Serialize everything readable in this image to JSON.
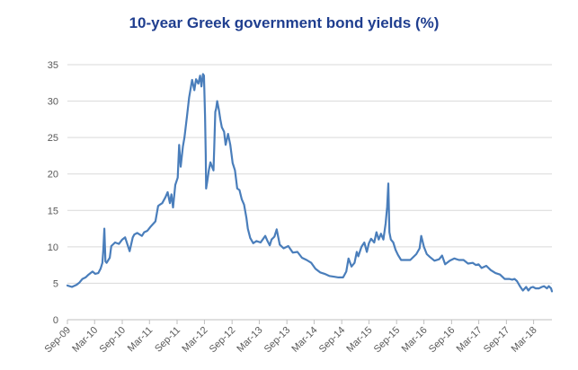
{
  "chart_data": {
    "type": "line",
    "title": "10-year Greek government bond yields (%)",
    "xlabel": "",
    "ylabel": "",
    "ylim": [
      0,
      35
    ],
    "yticks": [
      "0",
      "5",
      "10",
      "15",
      "20",
      "25",
      "30",
      "35"
    ],
    "xticks": [
      "Sep-09",
      "Mar-10",
      "Sep-10",
      "Mar-11",
      "Sep-11",
      "Mar-12",
      "Sep-12",
      "Mar-13",
      "Sep-13",
      "Mar-14",
      "Sep-14",
      "Mar-15",
      "Sep-15",
      "Mar-16",
      "Sep-16",
      "Mar-17",
      "Sep-17",
      "Mar-18"
    ],
    "xlim": [
      "2009-09-01",
      "2018-07-01"
    ],
    "grid": "horizontal",
    "legend": "none",
    "colors": {
      "title": "#1F3E8F",
      "line": "#4A7EBB",
      "grid": "#D9D9D9",
      "axis": "#BFBFBF",
      "tick_text": "#595959"
    },
    "series": [
      {
        "x": [
          "2009-09-01",
          "2009-10-01",
          "2009-11-01",
          "2009-11-20",
          "2009-12-10",
          "2009-12-31",
          "2010-01-20",
          "2010-02-15",
          "2010-03-05",
          "2010-03-25",
          "2010-04-10",
          "2010-04-22",
          "2010-04-28",
          "2010-05-05",
          "2010-05-12",
          "2010-05-20",
          "2010-06-10",
          "2010-06-20",
          "2010-07-15",
          "2010-08-10",
          "2010-09-01",
          "2010-09-20",
          "2010-10-20",
          "2010-11-10",
          "2010-11-20",
          "2010-12-10",
          "2011-01-10",
          "2011-01-25",
          "2011-02-15",
          "2011-03-10",
          "2011-04-10",
          "2011-04-28",
          "2011-05-10",
          "2011-05-25",
          "2011-06-15",
          "2011-06-30",
          "2011-07-15",
          "2011-07-25",
          "2011-08-05",
          "2011-08-20",
          "2011-09-05",
          "2011-09-15",
          "2011-09-25",
          "2011-10-10",
          "2011-10-20",
          "2011-11-05",
          "2011-11-20",
          "2011-12-10",
          "2011-12-25",
          "2012-01-05",
          "2012-01-20",
          "2012-02-01",
          "2012-02-10",
          "2012-02-20",
          "2012-02-27",
          "2012-03-05",
          "2012-03-10",
          "2012-03-12",
          "2012-03-20",
          "2012-03-30",
          "2012-04-10",
          "2012-04-20",
          "2012-04-30",
          "2012-05-05",
          "2012-05-12",
          "2012-05-18",
          "2012-05-25",
          "2012-06-05",
          "2012-06-15",
          "2012-06-25",
          "2012-07-10",
          "2012-07-20",
          "2012-08-05",
          "2012-08-20",
          "2012-09-05",
          "2012-09-20",
          "2012-10-05",
          "2012-10-20",
          "2012-11-05",
          "2012-11-20",
          "2012-12-05",
          "2012-12-15",
          "2012-12-31",
          "2013-01-20",
          "2013-02-10",
          "2013-03-10",
          "2013-04-10",
          "2013-04-25",
          "2013-05-10",
          "2013-05-22",
          "2013-06-10",
          "2013-06-25",
          "2013-07-15",
          "2013-08-10",
          "2013-09-10",
          "2013-10-10",
          "2013-11-10",
          "2013-12-10",
          "2014-01-10",
          "2014-02-10",
          "2014-03-10",
          "2014-04-10",
          "2014-05-10",
          "2014-06-10",
          "2014-07-10",
          "2014-08-10",
          "2014-09-10",
          "2014-10-01",
          "2014-10-16",
          "2014-11-05",
          "2014-11-25",
          "2014-12-10",
          "2014-12-20",
          "2015-01-10",
          "2015-01-29",
          "2015-02-15",
          "2015-03-01",
          "2015-03-15",
          "2015-04-05",
          "2015-04-20",
          "2015-05-05",
          "2015-05-20",
          "2015-06-05",
          "2015-06-20",
          "2015-06-30",
          "2015-07-08",
          "2015-07-15",
          "2015-07-25",
          "2015-08-10",
          "2015-08-25",
          "2015-09-10",
          "2015-10-01",
          "2015-11-01",
          "2015-12-01",
          "2016-01-10",
          "2016-02-01",
          "2016-02-12",
          "2016-03-01",
          "2016-03-20",
          "2016-04-10",
          "2016-05-10",
          "2016-06-10",
          "2016-06-30",
          "2016-07-20",
          "2016-08-20",
          "2016-09-20",
          "2016-10-20",
          "2016-11-20",
          "2016-12-20",
          "2017-01-20",
          "2017-02-10",
          "2017-02-28",
          "2017-03-20",
          "2017-04-20",
          "2017-05-20",
          "2017-06-20",
          "2017-07-20",
          "2017-08-20",
          "2017-09-20",
          "2017-10-10",
          "2017-10-25",
          "2017-11-10",
          "2017-11-30",
          "2017-12-20",
          "2018-01-10",
          "2018-01-25",
          "2018-02-10",
          "2018-02-25",
          "2018-03-15",
          "2018-04-05",
          "2018-04-25",
          "2018-05-10",
          "2018-05-29",
          "2018-06-10",
          "2018-06-25",
          "2018-07-01"
        ],
        "values": [
          4.7,
          4.5,
          4.8,
          5.1,
          5.6,
          5.8,
          6.2,
          6.6,
          6.3,
          6.4,
          7.0,
          7.8,
          9.5,
          12.5,
          8.0,
          7.8,
          8.5,
          10.1,
          10.6,
          10.4,
          11.0,
          11.3,
          9.4,
          11.3,
          11.7,
          11.9,
          11.5,
          12.0,
          12.2,
          12.8,
          13.5,
          15.6,
          15.8,
          16.0,
          16.8,
          17.5,
          16.0,
          17.2,
          15.4,
          18.5,
          19.5,
          24.0,
          21.0,
          23.8,
          25.0,
          27.8,
          30.5,
          32.9,
          31.5,
          33.0,
          32.4,
          33.5,
          32.0,
          33.7,
          33.5,
          28.0,
          22.5,
          18.0,
          19.0,
          20.5,
          21.6,
          21.0,
          20.5,
          23.5,
          28.5,
          29.0,
          30.0,
          28.8,
          27.5,
          26.4,
          25.8,
          24.0,
          25.5,
          24.0,
          21.5,
          20.5,
          18.0,
          17.8,
          16.5,
          15.8,
          14.0,
          12.5,
          11.2,
          10.5,
          10.8,
          10.6,
          11.5,
          10.8,
          10.2,
          11.0,
          11.4,
          12.4,
          10.3,
          9.8,
          10.1,
          9.2,
          9.3,
          8.5,
          8.2,
          7.8,
          7.0,
          6.5,
          6.3,
          6.0,
          5.9,
          5.8,
          5.8,
          6.6,
          8.4,
          7.3,
          7.8,
          9.3,
          8.7,
          10.0,
          10.6,
          9.3,
          10.5,
          11.1,
          10.6,
          12.0,
          11.0,
          11.8,
          11.0,
          13.2,
          15.5,
          18.7,
          12.0,
          11.0,
          10.6,
          9.6,
          8.9,
          8.2,
          8.2,
          8.2,
          9.0,
          9.8,
          11.5,
          10.0,
          9.0,
          8.6,
          8.1,
          8.3,
          8.8,
          7.6,
          8.1,
          8.4,
          8.2,
          8.2,
          7.7,
          7.8,
          7.5,
          7.6,
          7.1,
          7.4,
          6.8,
          6.4,
          6.2,
          5.6,
          5.6,
          5.5,
          5.6,
          5.3,
          4.6,
          4.0,
          4.5,
          4.0,
          4.4,
          4.5,
          4.3,
          4.3,
          4.5,
          4.6,
          4.3,
          4.6,
          4.3,
          3.9
        ]
      }
    ]
  }
}
